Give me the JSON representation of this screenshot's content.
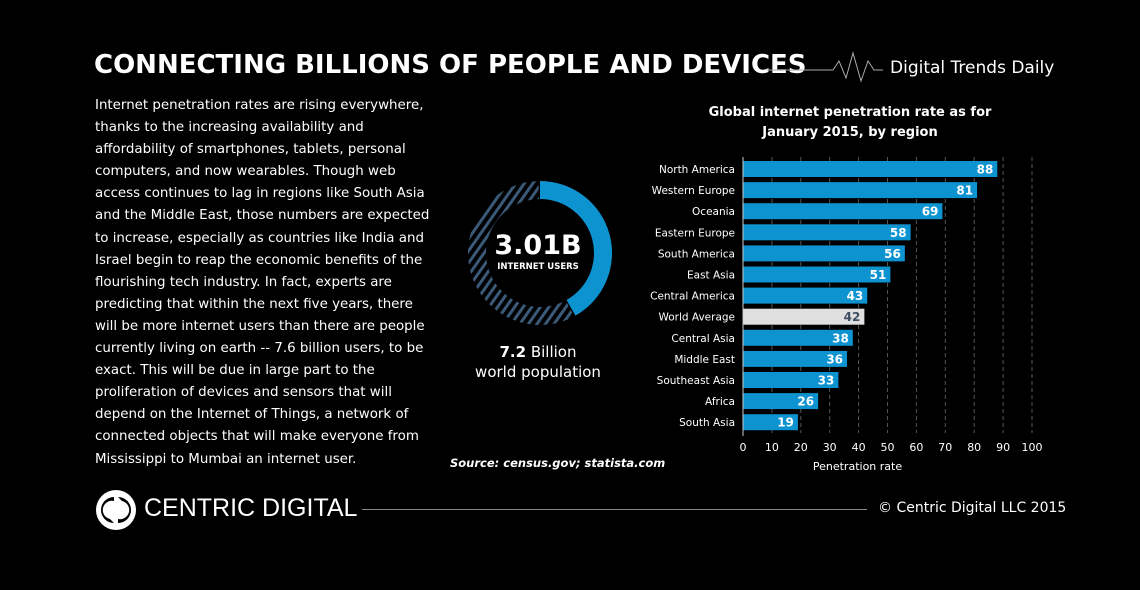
{
  "header": {
    "title": "CONNECTING BILLIONS OF PEOPLE AND DEVICES",
    "brand": "Digital Trends Daily"
  },
  "intro_lines": [
    "Internet penetration rates are rising everywhere,",
    "thanks to the increasing availability and",
    "affordability of smartphones, tablets, personal",
    "computers, and now wearables. Though web",
    "access continues to lag in regions like South Asia",
    "and the Middle East, those numbers are expected",
    "to increase, especially as countries like India and",
    "Israel begin to reap the economic benefits of the",
    "flourishing tech industry. In fact, experts are",
    "predicting that within the next five years, there",
    "will be more internet users than there are people",
    "currently living on earth -- 7.6 billion users, to be",
    "exact. This will be due in large part to the",
    "proliferation of devices and sensors that will",
    "depend on the Internet of Things, a network of",
    "connected objects that will make everyone from",
    "Mississippi to Mumbai an internet user."
  ],
  "donut": {
    "value": "3.01B",
    "label": "INTERNET USERS",
    "population_value": "7.2",
    "population_unit": "Billion",
    "population_label": "world population",
    "users_billion": 3.01,
    "population_billion": 7.2,
    "color_users": "#0e93d1",
    "color_rest": "#3a5a78"
  },
  "source": "Source: census.gov; statista.com",
  "footer": {
    "logo": "CENTRIC DIGITAL",
    "copyright": "© Centric Digital LLC 2015"
  },
  "chart_data": {
    "type": "bar",
    "orientation": "horizontal",
    "title": "Global internet penetration rate as for January 2015, by region",
    "title_lines": [
      "Global internet penetration rate as for",
      "January 2015, by region"
    ],
    "xlabel": "Penetration rate",
    "xlim": [
      0,
      100
    ],
    "ticks": [
      0,
      10,
      20,
      30,
      40,
      50,
      60,
      70,
      80,
      90,
      100
    ],
    "grid": true,
    "categories": [
      "North America",
      "Western Europe",
      "Oceania",
      "Eastern Europe",
      "South America",
      "East Asia",
      "Central America",
      "World Average",
      "Central Asia",
      "Middle East",
      "Southeast Asia",
      "Africa",
      "South Asia"
    ],
    "values": [
      88,
      81,
      69,
      58,
      56,
      51,
      43,
      42,
      38,
      36,
      33,
      26,
      19
    ],
    "bar_color": "#0e93d1",
    "highlight_category": "World Average",
    "highlight_color": "#e0e0e0"
  }
}
